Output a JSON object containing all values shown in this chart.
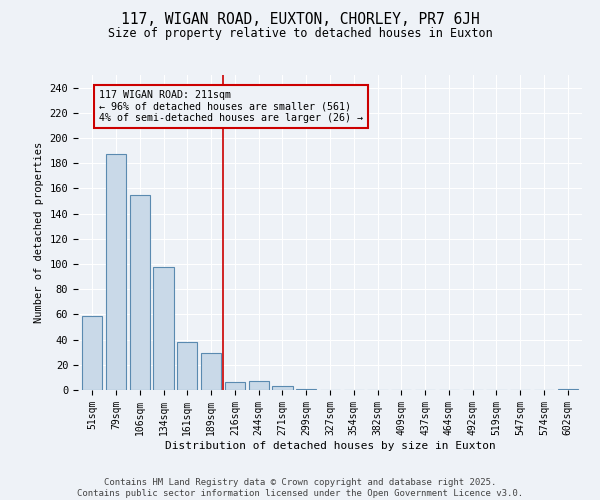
{
  "title": "117, WIGAN ROAD, EUXTON, CHORLEY, PR7 6JH",
  "subtitle": "Size of property relative to detached houses in Euxton",
  "xlabel": "Distribution of detached houses by size in Euxton",
  "ylabel": "Number of detached properties",
  "categories": [
    "51sqm",
    "79sqm",
    "106sqm",
    "134sqm",
    "161sqm",
    "189sqm",
    "216sqm",
    "244sqm",
    "271sqm",
    "299sqm",
    "327sqm",
    "354sqm",
    "382sqm",
    "409sqm",
    "437sqm",
    "464sqm",
    "492sqm",
    "519sqm",
    "547sqm",
    "574sqm",
    "602sqm"
  ],
  "values": [
    59,
    187,
    155,
    98,
    38,
    29,
    6,
    7,
    3,
    1,
    0,
    0,
    0,
    0,
    0,
    0,
    0,
    0,
    0,
    0,
    1
  ],
  "bar_color": "#c9d9e8",
  "bar_edge_color": "#5a8ab0",
  "vline_x_index": 5.5,
  "vline_color": "#cc0000",
  "annotation_text": "117 WIGAN ROAD: 211sqm\n← 96% of detached houses are smaller (561)\n4% of semi-detached houses are larger (26) →",
  "annotation_box_color": "#cc0000",
  "annotation_text_color": "#000000",
  "ylim": [
    0,
    250
  ],
  "yticks": [
    0,
    20,
    40,
    60,
    80,
    100,
    120,
    140,
    160,
    180,
    200,
    220,
    240
  ],
  "background_color": "#eef2f7",
  "grid_color": "#ffffff",
  "footer_line1": "Contains HM Land Registry data © Crown copyright and database right 2025.",
  "footer_line2": "Contains public sector information licensed under the Open Government Licence v3.0."
}
